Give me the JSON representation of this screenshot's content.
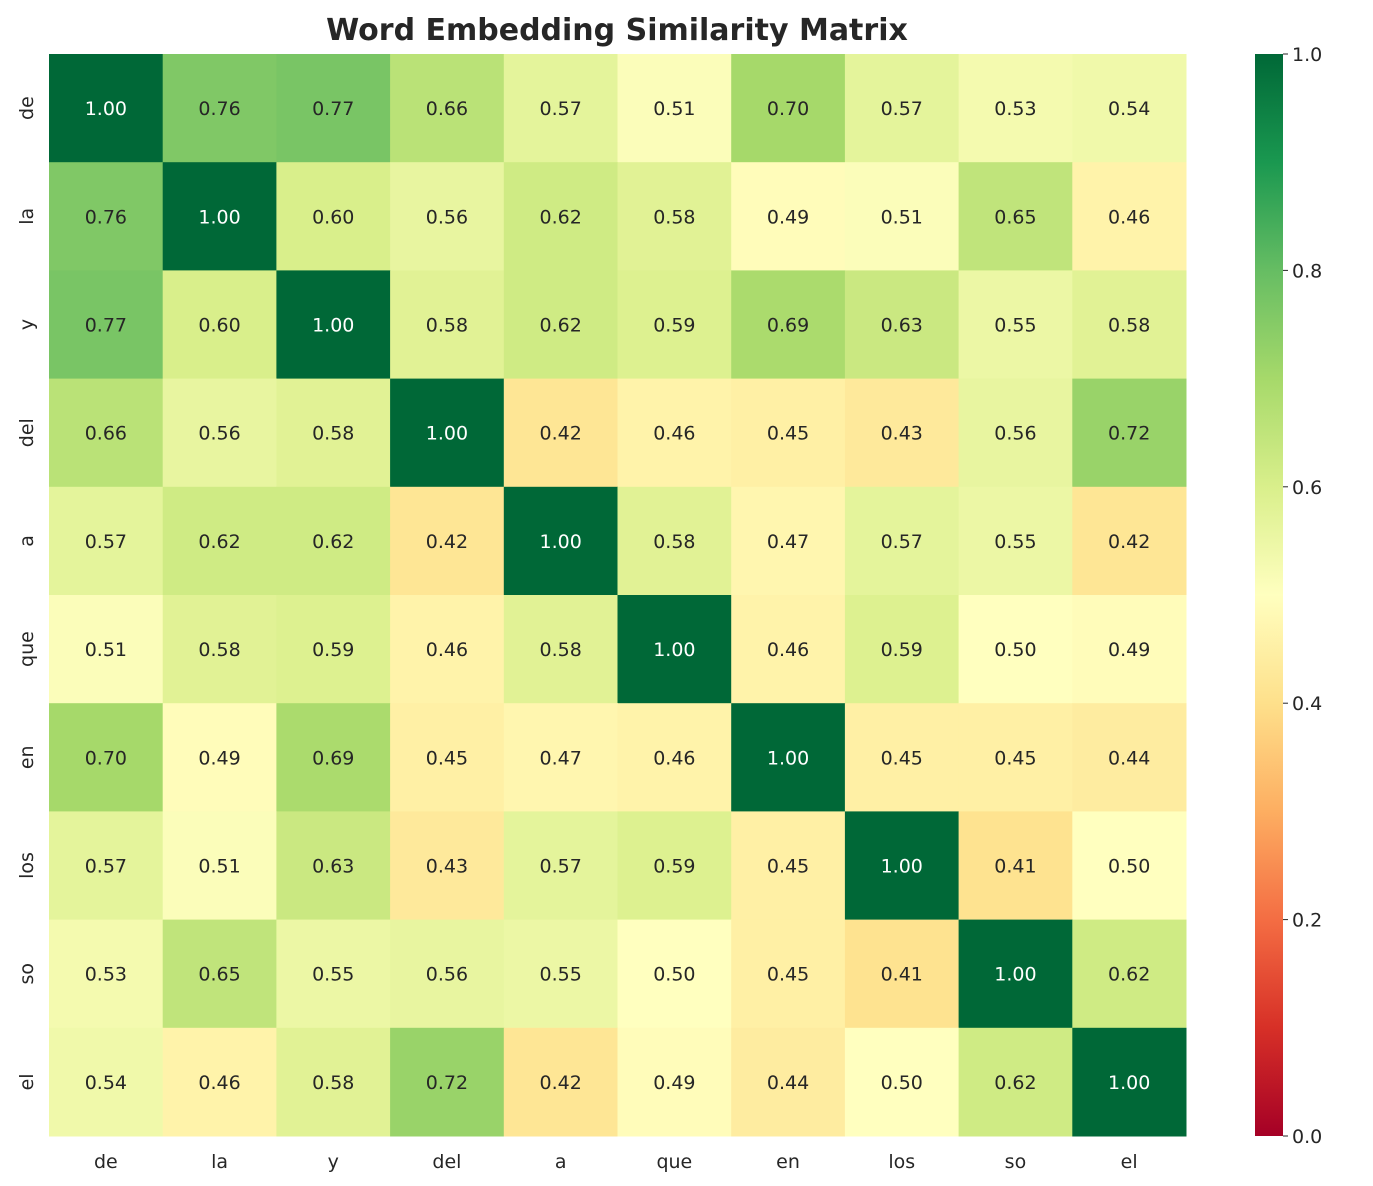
{
  "chart_data": {
    "type": "heatmap",
    "title": "Word Embedding Similarity Matrix",
    "x_labels": [
      "de",
      "la",
      "y",
      "del",
      "a",
      "que",
      "en",
      "los",
      "so",
      "el"
    ],
    "y_labels": [
      "de",
      "la",
      "y",
      "del",
      "a",
      "que",
      "en",
      "los",
      "so",
      "el"
    ],
    "values": [
      [
        1.0,
        0.76,
        0.77,
        0.66,
        0.57,
        0.51,
        0.7,
        0.57,
        0.53,
        0.54
      ],
      [
        0.76,
        1.0,
        0.6,
        0.56,
        0.62,
        0.58,
        0.49,
        0.51,
        0.65,
        0.46
      ],
      [
        0.77,
        0.6,
        1.0,
        0.58,
        0.62,
        0.59,
        0.69,
        0.63,
        0.55,
        0.58
      ],
      [
        0.66,
        0.56,
        0.58,
        1.0,
        0.42,
        0.46,
        0.45,
        0.43,
        0.56,
        0.72
      ],
      [
        0.57,
        0.62,
        0.62,
        0.42,
        1.0,
        0.58,
        0.47,
        0.57,
        0.55,
        0.42
      ],
      [
        0.51,
        0.58,
        0.59,
        0.46,
        0.58,
        1.0,
        0.46,
        0.59,
        0.5,
        0.49
      ],
      [
        0.7,
        0.49,
        0.69,
        0.45,
        0.47,
        0.46,
        1.0,
        0.45,
        0.45,
        0.44
      ],
      [
        0.57,
        0.51,
        0.63,
        0.43,
        0.57,
        0.59,
        0.45,
        1.0,
        0.41,
        0.5
      ],
      [
        0.53,
        0.65,
        0.55,
        0.56,
        0.55,
        0.5,
        0.45,
        0.41,
        1.0,
        0.62
      ],
      [
        0.54,
        0.46,
        0.58,
        0.72,
        0.42,
        0.49,
        0.44,
        0.5,
        0.62,
        1.0
      ]
    ],
    "colormap": "RdYlGn",
    "colorbar": {
      "range": [
        0.0,
        1.0
      ],
      "ticks": [
        "0.0",
        "0.2",
        "0.4",
        "0.6",
        "0.8",
        "1.0"
      ]
    },
    "annotation_format": "0.00"
  }
}
